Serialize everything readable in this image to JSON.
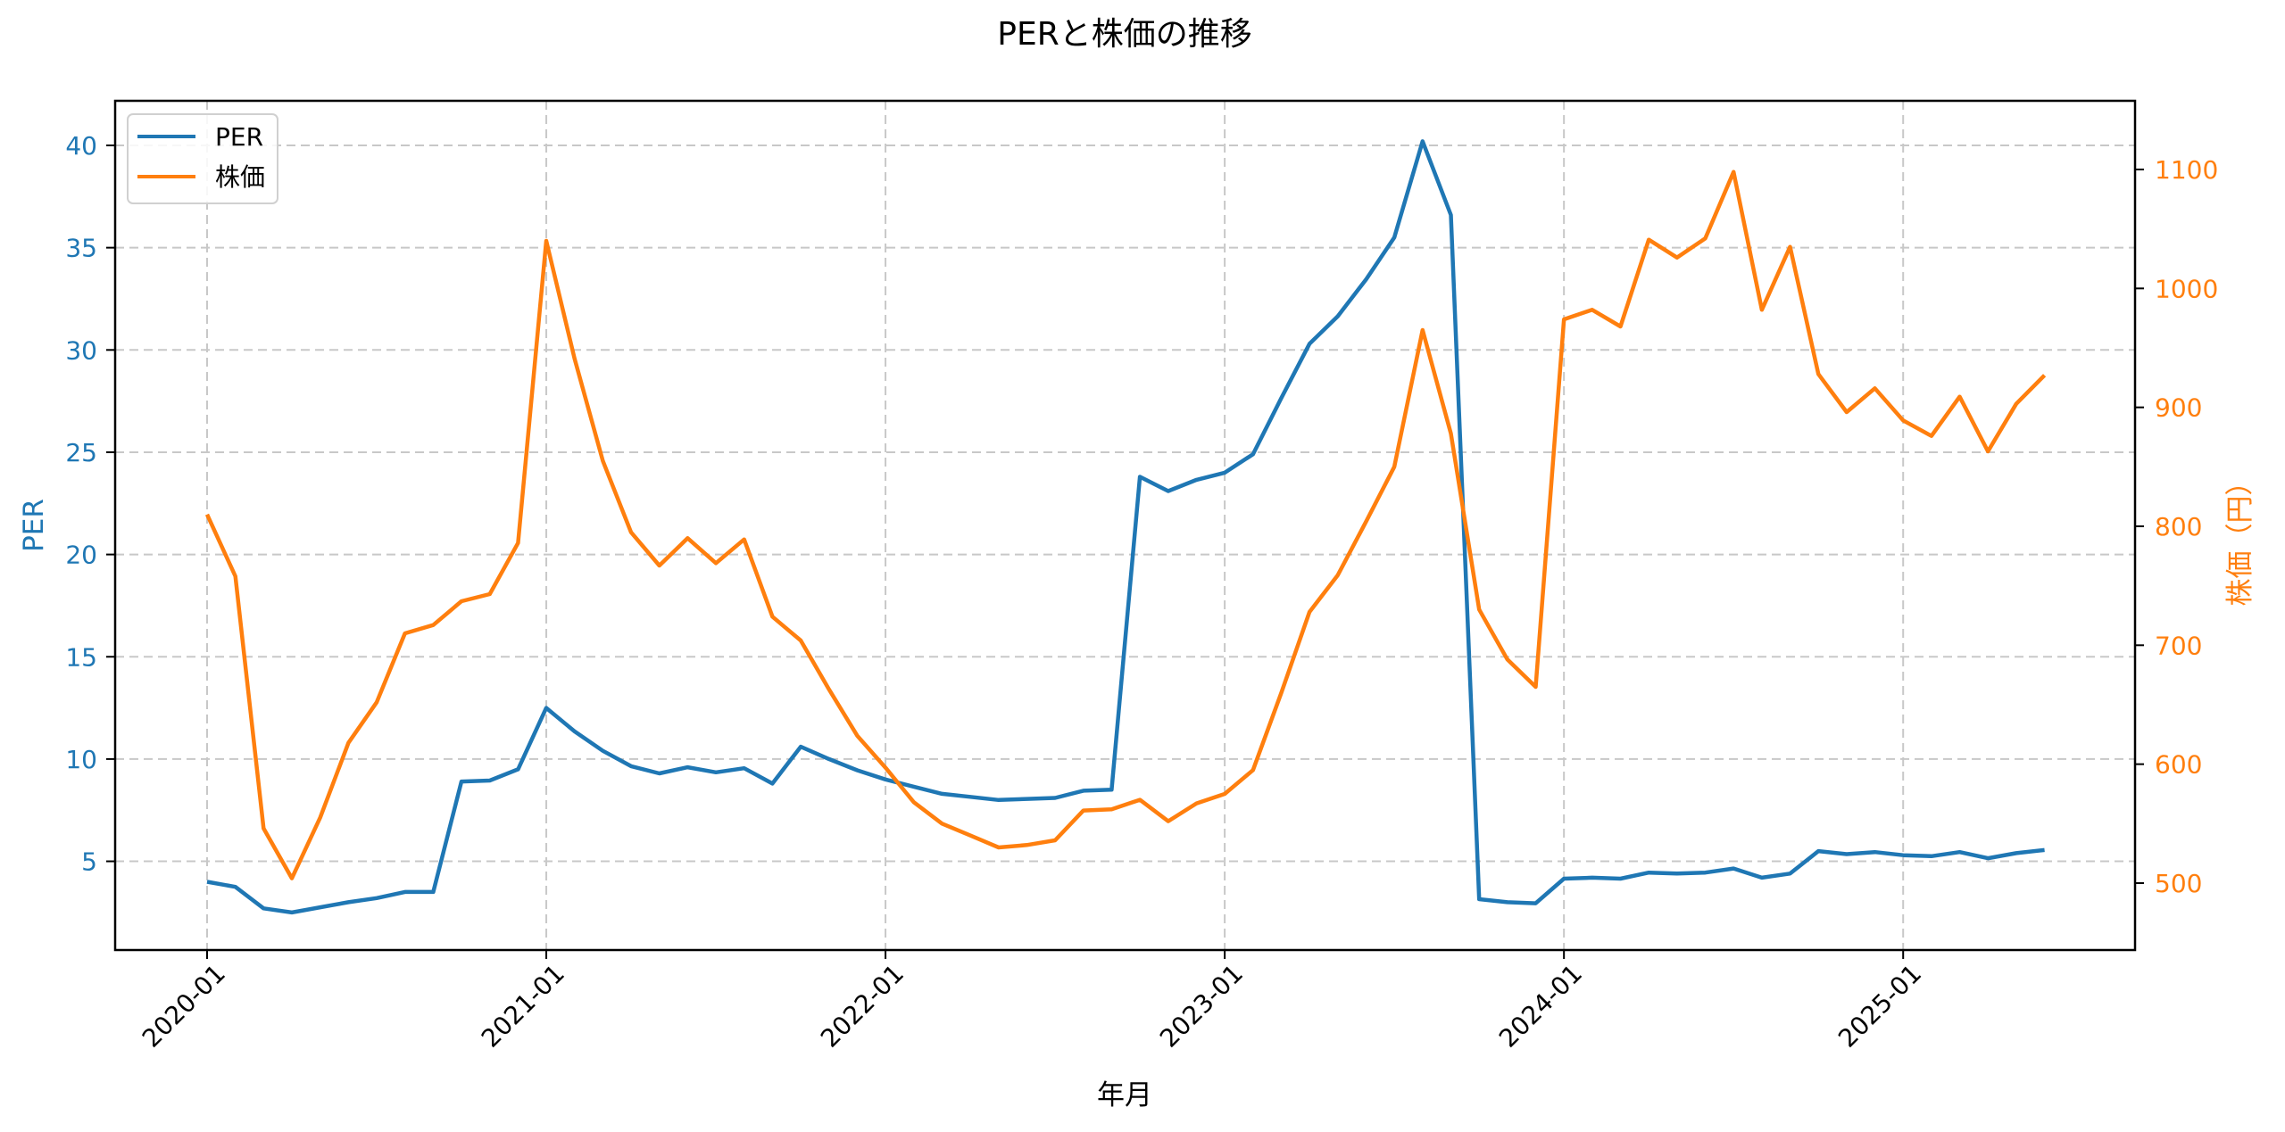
{
  "chart_data": {
    "type": "line",
    "title": "PERと株価の推移",
    "xlabel": "年月",
    "ylabel": "PER",
    "ylabel_right": "株価（円）",
    "x_tick_labels": [
      "2020-01",
      "2021-01",
      "2022-01",
      "2023-01",
      "2024-01",
      "2025-01"
    ],
    "y_ticks_left": [
      5,
      10,
      15,
      20,
      25,
      30,
      35,
      40
    ],
    "y_ticks_right": [
      500,
      600,
      700,
      800,
      900,
      1000,
      1100
    ],
    "ylim_left": [
      0.9,
      42.1
    ],
    "ylim_right": [
      445,
      1149
    ],
    "grid": true,
    "legend_position": "upper left",
    "x": [
      "2020-01",
      "2020-02",
      "2020-03",
      "2020-04",
      "2020-05",
      "2020-06",
      "2020-07",
      "2020-08",
      "2020-09",
      "2020-10",
      "2020-11",
      "2020-12",
      "2021-01",
      "2021-02",
      "2021-03",
      "2021-04",
      "2021-05",
      "2021-06",
      "2021-07",
      "2021-08",
      "2021-09",
      "2021-10",
      "2021-11",
      "2021-12",
      "2022-01",
      "2022-02",
      "2022-03",
      "2022-04",
      "2022-05",
      "2022-06",
      "2022-07",
      "2022-08",
      "2022-09",
      "2022-10",
      "2022-11",
      "2022-12",
      "2023-01",
      "2023-02",
      "2023-03",
      "2023-04",
      "2023-05",
      "2023-06",
      "2023-07",
      "2023-08",
      "2023-09",
      "2023-10",
      "2023-11",
      "2023-12",
      "2024-01",
      "2024-02",
      "2024-03",
      "2024-04",
      "2024-05",
      "2024-06",
      "2024-07",
      "2024-08",
      "2024-09",
      "2024-10",
      "2024-11",
      "2024-12",
      "2025-01",
      "2025-02",
      "2025-03",
      "2025-04",
      "2025-05",
      "2025-06"
    ],
    "series": [
      {
        "name": "PER",
        "axis": "left",
        "color": "#1f77b4",
        "values": [
          4.0,
          3.75,
          2.7,
          2.5,
          2.75,
          3.0,
          3.2,
          3.5,
          3.5,
          8.9,
          8.95,
          9.5,
          12.5,
          11.35,
          10.4,
          9.65,
          9.3,
          9.6,
          9.35,
          9.55,
          8.8,
          10.6,
          10.0,
          9.45,
          9.0,
          8.65,
          8.3,
          8.15,
          8.0,
          8.05,
          8.1,
          8.45,
          8.5,
          23.8,
          23.1,
          23.65,
          24.0,
          24.9,
          27.65,
          30.3,
          31.65,
          33.45,
          35.5,
          40.2,
          36.6,
          3.15,
          3.0,
          2.95,
          4.15,
          4.2,
          4.15,
          4.45,
          4.4,
          4.45,
          4.65,
          4.2,
          4.4,
          5.5,
          5.35,
          5.45,
          5.3,
          5.25,
          5.45,
          5.15,
          5.4,
          5.55
        ]
      },
      {
        "name": "株価",
        "axis": "right",
        "color": "#ff7f0e",
        "values": [
          810,
          758,
          546,
          504,
          555,
          618,
          652,
          710,
          717,
          737,
          743,
          786,
          1040,
          941,
          855,
          795,
          767,
          790,
          769,
          789,
          724,
          704,
          663,
          624,
          597,
          568,
          550,
          540,
          530,
          532,
          536,
          561,
          562,
          570,
          552,
          567,
          575,
          595,
          660,
          728,
          759,
          804,
          850,
          965,
          878,
          730,
          688,
          665,
          974,
          982,
          968,
          1041,
          1026,
          1042,
          1098,
          982,
          1035,
          928,
          896,
          916,
          889,
          876,
          909,
          863,
          903,
          927
        ]
      }
    ]
  },
  "legend": {
    "items": [
      {
        "label": "PER",
        "color": "#1f77b4"
      },
      {
        "label": "株価",
        "color": "#ff7f0e"
      }
    ]
  },
  "colors": {
    "left_axis": "#1f77b4",
    "right_axis": "#ff7f0e",
    "grid": "#c8c8c8",
    "frame": "#000000"
  }
}
